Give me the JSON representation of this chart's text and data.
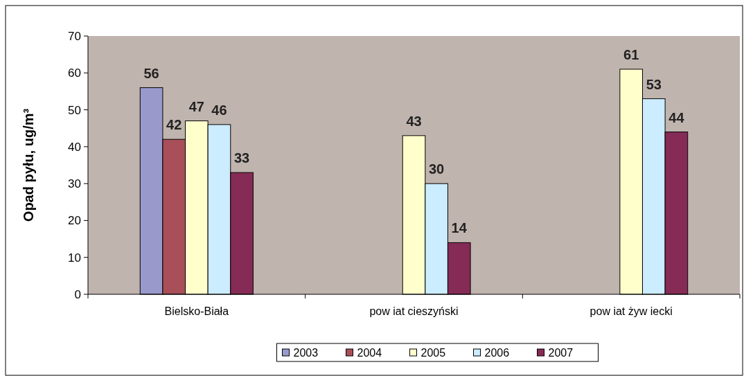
{
  "chart_data": {
    "type": "bar",
    "ylabel": "Opad pyłu, ug/m³",
    "categories": [
      "Bielsko-Biała",
      "pow iat cieszyński",
      "pow iat żyw iecki"
    ],
    "series": [
      {
        "name": "2003",
        "color": "#9999cc",
        "values": [
          56,
          null,
          null
        ]
      },
      {
        "name": "2004",
        "color": "#a94f5a",
        "values": [
          42,
          null,
          null
        ]
      },
      {
        "name": "2005",
        "color": "#ffffcc",
        "values": [
          47,
          43,
          61
        ]
      },
      {
        "name": "2006",
        "color": "#ccecff",
        "values": [
          46,
          30,
          53
        ]
      },
      {
        "name": "2007",
        "color": "#852b55",
        "values": [
          33,
          14,
          44
        ]
      }
    ],
    "ylim": [
      0,
      70
    ],
    "yticks": [
      0,
      10,
      20,
      30,
      40,
      50,
      60,
      70
    ],
    "data_labels": true,
    "legend": "bottom"
  }
}
